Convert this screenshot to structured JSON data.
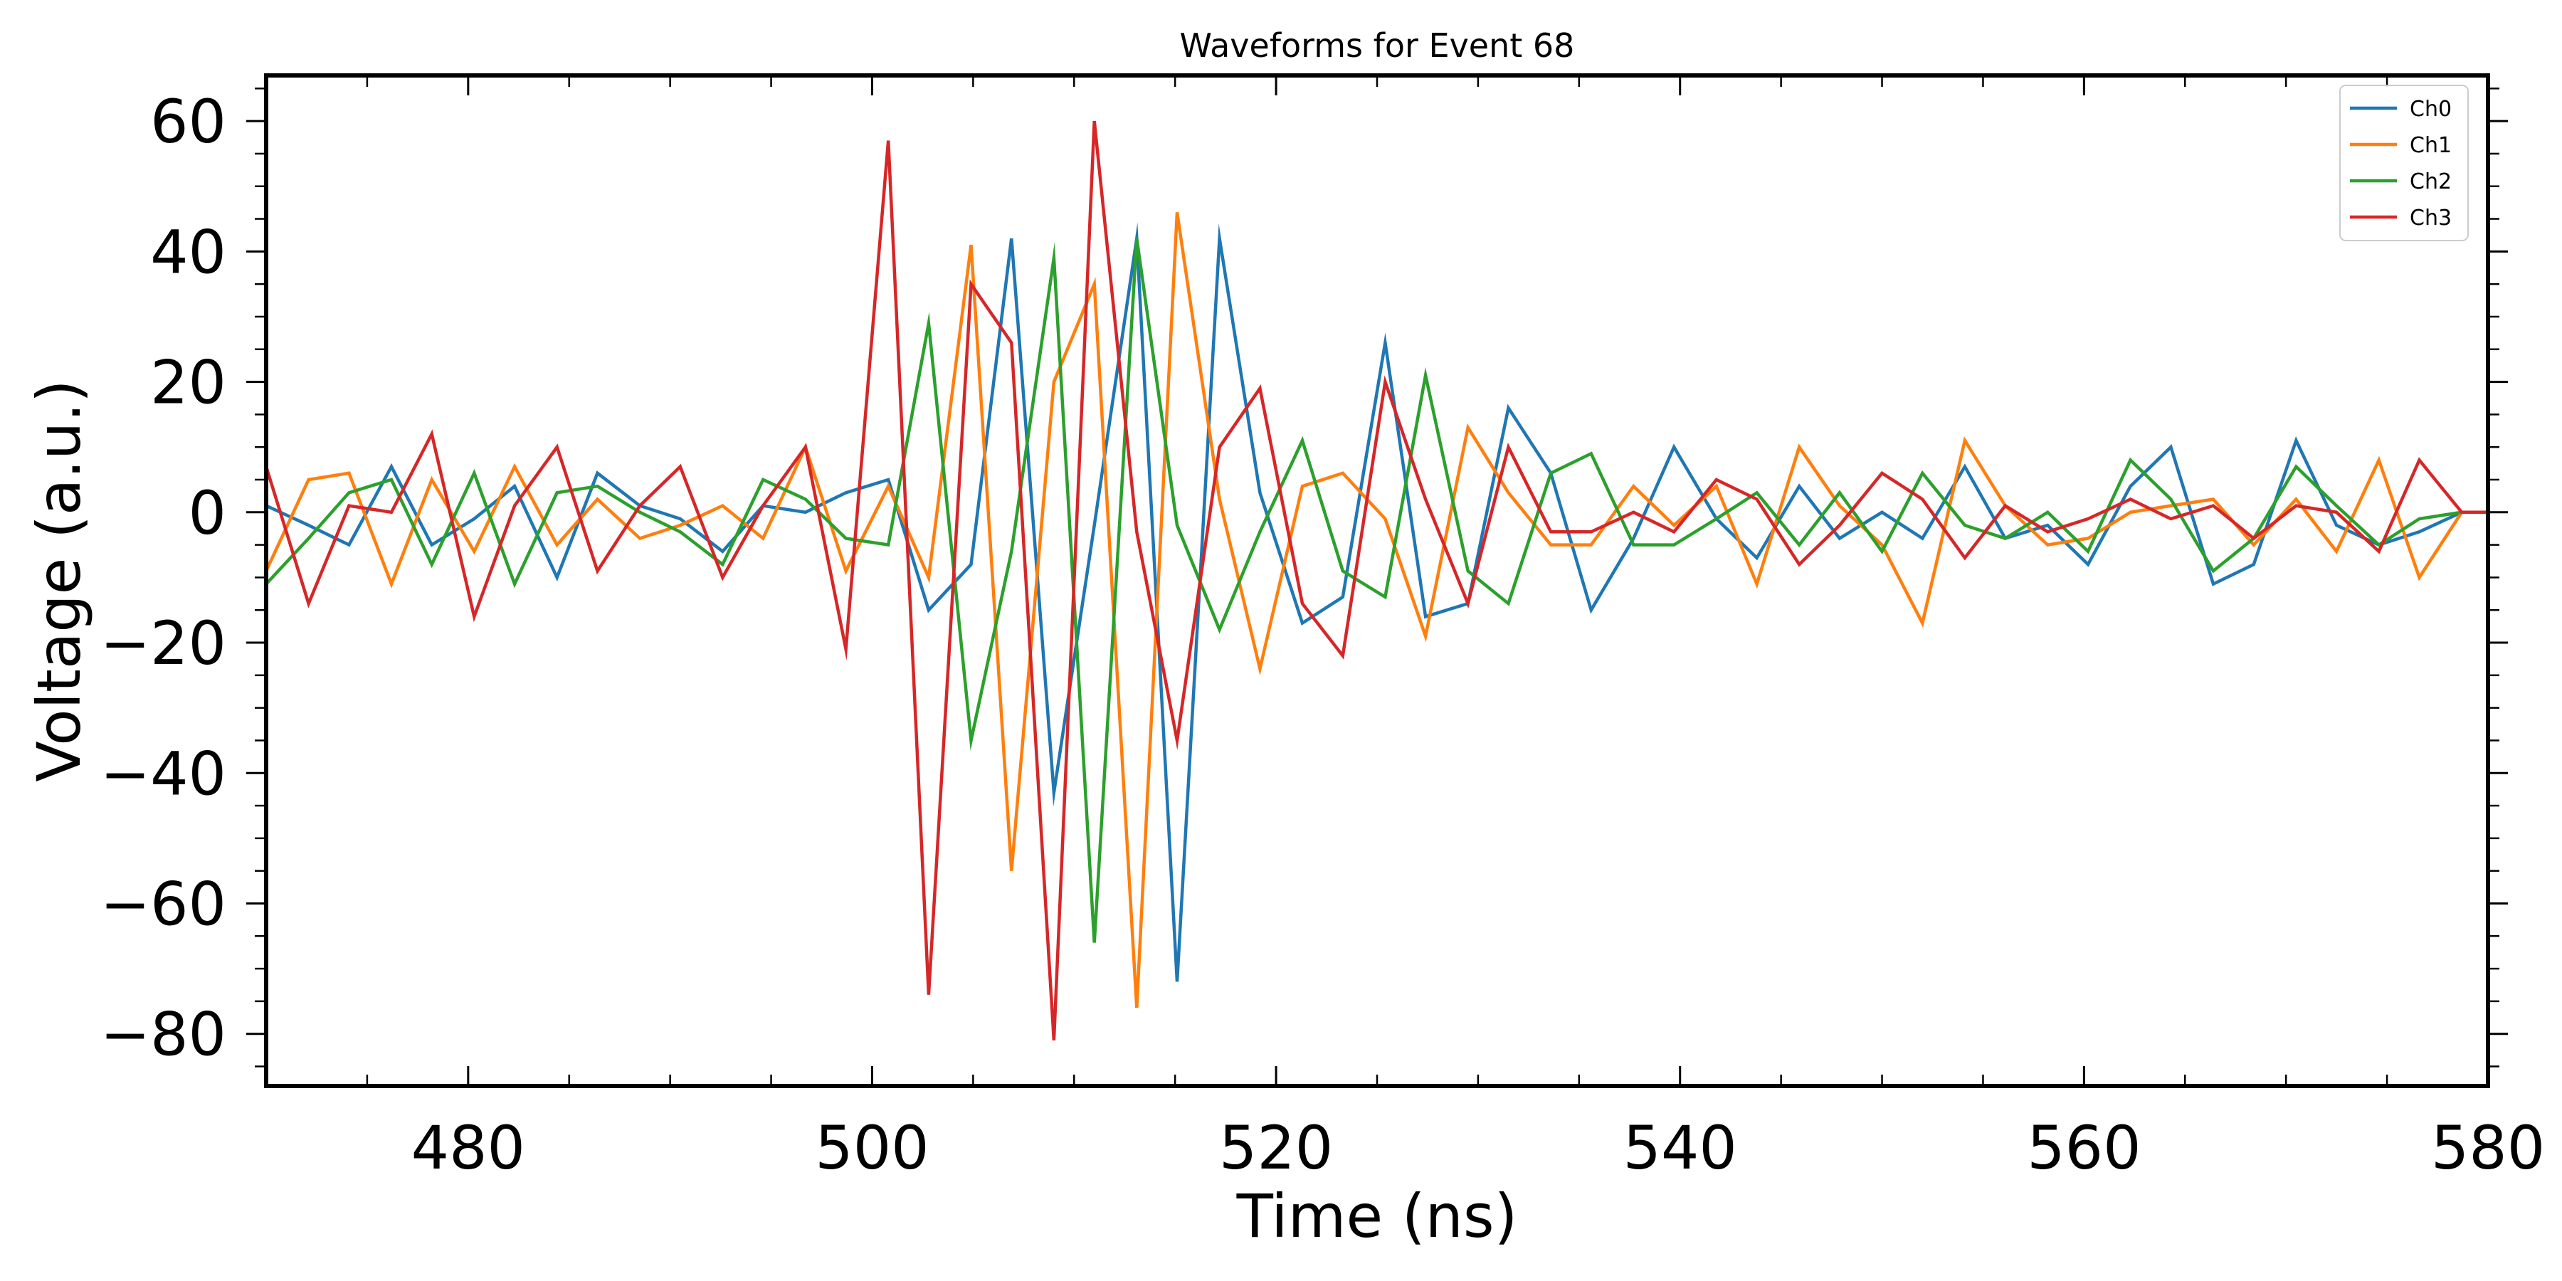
{
  "chart_data": {
    "type": "line",
    "title": "Waveforms for Event 68",
    "xlabel": "Time (ns)",
    "ylabel": "Voltage (a.u.)",
    "xlim": [
      470,
      580
    ],
    "ylim": [
      -88,
      67
    ],
    "xticks": [
      480,
      500,
      520,
      540,
      560,
      580
    ],
    "xtick_labels": [
      "480",
      "500",
      "520",
      "540",
      "560",
      "580"
    ],
    "yticks": [
      -80,
      -60,
      -40,
      -20,
      0,
      20,
      40,
      60
    ],
    "ytick_labels": [
      "−80",
      "−60",
      "−40",
      "−20",
      "0",
      "20",
      "40",
      "60"
    ],
    "grid": false,
    "legend_position": "top-right",
    "x": [
      470.0,
      472.1,
      474.1,
      476.2,
      478.2,
      480.3,
      482.3,
      484.4,
      486.4,
      488.5,
      490.5,
      492.6,
      494.6,
      496.7,
      498.7,
      500.8,
      502.8,
      504.9,
      506.9,
      509.0,
      511.0,
      513.1,
      515.1,
      517.2,
      519.2,
      521.3,
      523.3,
      525.4,
      527.4,
      529.5,
      531.5,
      533.6,
      535.6,
      537.7,
      539.7,
      541.8,
      543.8,
      545.9,
      547.9,
      550.0,
      552.0,
      554.1,
      556.1,
      558.2,
      560.2,
      562.3,
      564.3,
      566.4,
      568.4,
      570.5,
      572.5,
      574.6,
      576.6,
      578.7,
      580.7
    ],
    "series": [
      {
        "name": "Ch0",
        "color": "#1f77b4",
        "values": [
          1,
          -2,
          -5,
          7,
          -5,
          -1,
          4,
          -10,
          6,
          1,
          -1,
          -6,
          1,
          0,
          3,
          5,
          -15,
          -8,
          42,
          -43,
          -2,
          42,
          -72,
          42,
          3,
          -17,
          -13,
          26,
          -16,
          -14,
          16,
          6,
          -15,
          -4,
          10,
          -1,
          -7,
          4,
          -4,
          0,
          -4,
          7,
          -4,
          -2,
          -8,
          4,
          10,
          -11,
          -8,
          11,
          -2,
          -5,
          -3,
          0,
          0
        ]
      },
      {
        "name": "Ch1",
        "color": "#ff7f0e",
        "values": [
          -9,
          5,
          6,
          -11,
          5,
          -6,
          7,
          -5,
          2,
          -4,
          -2,
          1,
          -4,
          10,
          -9,
          4,
          -10,
          41,
          -55,
          20,
          35,
          -76,
          46,
          2,
          -24,
          4,
          6,
          -1,
          -19,
          13,
          3,
          -5,
          -5,
          4,
          -2,
          4,
          -11,
          10,
          1,
          -5,
          -17,
          11,
          1,
          -5,
          -4,
          0,
          1,
          2,
          -5,
          2,
          -6,
          8,
          -10,
          0,
          0
        ]
      },
      {
        "name": "Ch2",
        "color": "#2ca02c",
        "values": [
          -11,
          -4,
          3,
          5,
          -8,
          6,
          -11,
          3,
          4,
          0,
          -3,
          -8,
          5,
          2,
          -4,
          -5,
          29,
          -35,
          -6,
          39,
          -66,
          42,
          -2,
          -18,
          -3,
          11,
          -9,
          -13,
          21,
          -9,
          -14,
          6,
          9,
          -5,
          -5,
          -1,
          3,
          -5,
          3,
          -6,
          6,
          -2,
          -4,
          0,
          -6,
          8,
          2,
          -9,
          -4,
          7,
          1,
          -5,
          -1,
          0,
          0
        ]
      },
      {
        "name": "Ch3",
        "color": "#d62728",
        "values": [
          7,
          -14,
          1,
          0,
          12,
          -16,
          1,
          10,
          -9,
          1,
          7,
          -10,
          1,
          10,
          -21,
          57,
          -74,
          35,
          26,
          -81,
          60,
          -3,
          -35,
          10,
          19,
          -14,
          -22,
          20,
          2,
          -14,
          10,
          -3,
          -3,
          0,
          -3,
          5,
          2,
          -8,
          -2,
          6,
          2,
          -7,
          1,
          -3,
          -1,
          2,
          -1,
          1,
          -4,
          1,
          0,
          -6,
          8,
          0,
          0
        ]
      }
    ]
  }
}
